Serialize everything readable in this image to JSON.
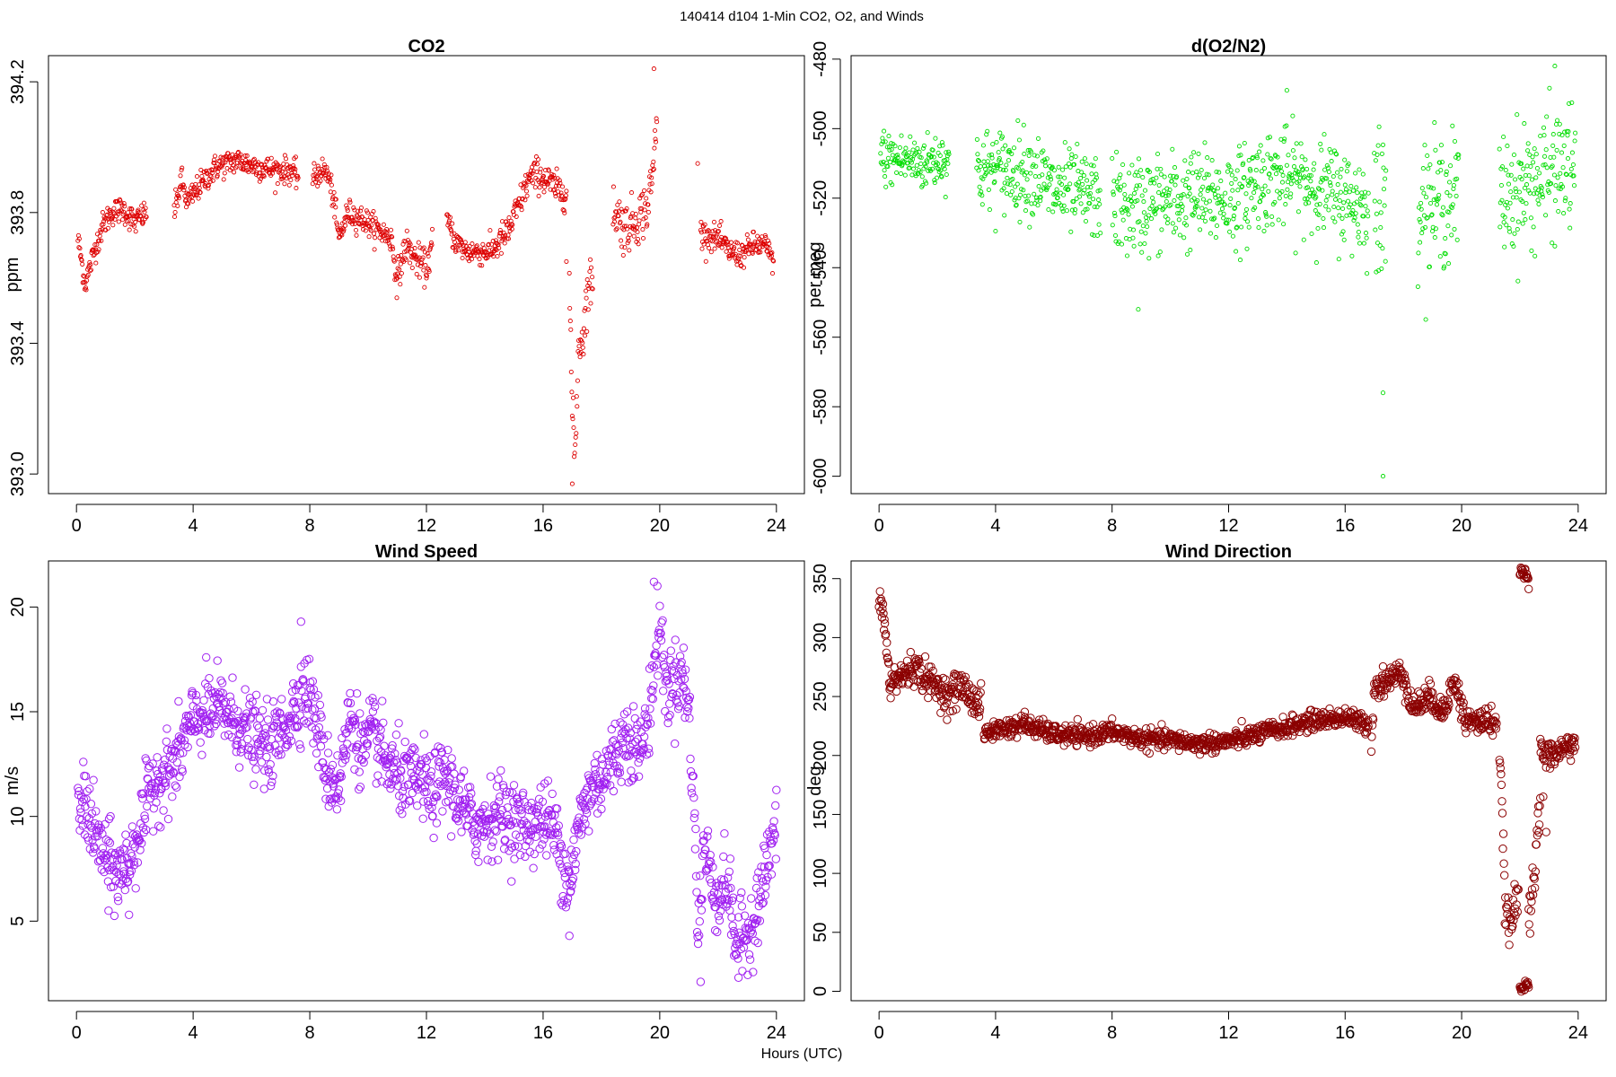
{
  "figure": {
    "title": "140414   d104   1-Min CO2, O2, and Winds",
    "xlabel": "Hours (UTC)"
  },
  "chart_data": [
    {
      "type": "scatter",
      "title": "CO2",
      "ylabel": "ppm",
      "xlabel": "",
      "color": "#dd0000",
      "point_radius": "small",
      "xlim": [
        -0.96,
        24.96
      ],
      "ylim": [
        392.94,
        394.28
      ],
      "xticks": [
        0,
        4,
        8,
        12,
        16,
        20,
        24
      ],
      "yticks": [
        393.0,
        393.4,
        393.8,
        394.2
      ],
      "ytick_labels": [
        "393.0",
        "393.4",
        "393.8",
        "394.2"
      ],
      "grid": false,
      "sampling_minutes": 1,
      "segments": [
        {
          "x": [
            0.05,
            0.3,
            0.6,
            0.9,
            1.2,
            1.6,
            2.0,
            2.4
          ],
          "y": [
            393.72,
            393.58,
            393.68,
            393.76,
            393.8,
            393.81,
            393.77,
            393.8
          ],
          "noise": 0.02
        },
        {
          "x": [
            3.35,
            3.6,
            3.8,
            4.2,
            4.8,
            5.5,
            6.2,
            6.8,
            7.3,
            7.6
          ],
          "y": [
            393.8,
            393.9,
            393.83,
            393.88,
            393.94,
            393.96,
            393.94,
            393.93,
            393.93,
            393.91
          ],
          "noise": 0.02
        },
        {
          "x": [
            8.1,
            8.4,
            8.6,
            8.8,
            9.0,
            9.3,
            9.8,
            10.3,
            10.8,
            11.0
          ],
          "y": [
            393.9,
            393.93,
            393.92,
            393.85,
            393.72,
            393.8,
            393.78,
            393.75,
            393.72,
            393.58
          ],
          "noise": 0.02
        },
        {
          "x": [
            11.0,
            11.3,
            11.6,
            12.0,
            12.2
          ],
          "y": [
            393.6,
            393.7,
            393.66,
            393.63,
            393.7
          ],
          "noise": 0.025
        },
        {
          "x": [
            12.7,
            13.0,
            13.4,
            13.8,
            14.2,
            14.4
          ],
          "y": [
            393.78,
            393.71,
            393.68,
            393.68,
            393.68,
            393.7
          ],
          "noise": 0.02
        },
        {
          "x": [
            14.4,
            14.8,
            15.2,
            15.5,
            15.8,
            16.1,
            16.5,
            16.8
          ],
          "y": [
            393.7,
            393.74,
            393.83,
            393.9,
            393.92,
            393.9,
            393.87,
            393.86
          ],
          "noise": 0.025
        },
        {
          "x": [
            16.9,
            17.0,
            17.1,
            17.2,
            17.4,
            17.5,
            17.7
          ],
          "y": [
            393.6,
            393.18,
            393.05,
            393.38,
            393.44,
            393.55,
            393.6
          ],
          "noise": 0.04
        },
        {
          "x": [
            18.4,
            18.8,
            19.1,
            19.4,
            19.6,
            19.8,
            19.9
          ],
          "y": [
            393.82,
            393.75,
            393.77,
            393.8,
            393.82,
            393.95,
            394.12
          ],
          "noise": 0.04
        },
        {
          "x": [
            21.4,
            21.6,
            22.0,
            22.4,
            22.8,
            23.2,
            23.6,
            23.9
          ],
          "y": [
            393.74,
            393.73,
            393.72,
            393.68,
            393.67,
            393.7,
            393.7,
            393.65
          ],
          "noise": 0.02
        }
      ],
      "outliers": [
        {
          "x": 17.0,
          "y": 392.97
        },
        {
          "x": 19.8,
          "y": 394.24
        },
        {
          "x": 21.3,
          "y": 393.95
        },
        {
          "x": 16.8,
          "y": 393.65
        }
      ]
    },
    {
      "type": "scatter",
      "title": "d(O2/N2)",
      "ylabel": "per meg",
      "xlabel": "",
      "color": "#00dd00",
      "point_radius": "small",
      "xlim": [
        -0.96,
        24.96
      ],
      "ylim": [
        -605.0,
        -479.0
      ],
      "xticks": [
        0,
        4,
        8,
        12,
        16,
        20,
        24
      ],
      "yticks": [
        -600,
        -580,
        -560,
        -540,
        -520,
        -500,
        -480
      ],
      "ytick_labels": [
        "-600",
        "-580",
        "-560",
        "-540",
        "-520",
        "-500",
        "-480"
      ],
      "grid": false,
      "sampling_minutes": 1,
      "segments": [
        {
          "x": [
            0.05,
            0.5,
            1.0,
            1.5,
            2.0,
            2.4
          ],
          "y": [
            -508,
            -509,
            -509,
            -510,
            -509,
            -508
          ],
          "noise": 4
        },
        {
          "x": [
            3.35,
            4.0,
            4.5,
            5.0,
            5.5,
            6.0,
            6.5,
            7.0,
            7.6
          ],
          "y": [
            -512,
            -512,
            -512,
            -512,
            -514,
            -518,
            -518,
            -519,
            -520
          ],
          "noise": 6
        },
        {
          "x": [
            8.0,
            8.5,
            9.0,
            10.0,
            11.0,
            12.0,
            12.7
          ],
          "y": [
            -522,
            -523,
            -522,
            -521,
            -520,
            -520,
            -519
          ],
          "noise": 7
        },
        {
          "x": [
            12.7,
            13.5,
            14.5,
            15.5,
            16.2,
            16.8
          ],
          "y": [
            -516,
            -514,
            -515,
            -518,
            -521,
            -522
          ],
          "noise": 7
        },
        {
          "x": [
            17.0,
            17.2,
            17.4
          ],
          "y": [
            -522,
            -525,
            -520
          ],
          "noise": 12
        },
        {
          "x": [
            18.5,
            19.0,
            19.5,
            19.9
          ],
          "y": [
            -520,
            -522,
            -520,
            -518
          ],
          "noise": 9
        },
        {
          "x": [
            21.3,
            21.8,
            22.3,
            22.8,
            23.3,
            23.9
          ],
          "y": [
            -520,
            -518,
            -516,
            -514,
            -512,
            -510
          ],
          "noise": 9
        }
      ],
      "outliers": [
        {
          "x": 17.3,
          "y": -600
        },
        {
          "x": 17.3,
          "y": -576
        },
        {
          "x": 23.2,
          "y": -482
        },
        {
          "x": 14.0,
          "y": -489
        },
        {
          "x": 8.9,
          "y": -552
        }
      ]
    },
    {
      "type": "scatter",
      "title": "Wind Speed",
      "ylabel": "m/s",
      "xlabel": "",
      "color": "#a020f0",
      "point_radius": "large",
      "xlim": [
        -0.96,
        24.96
      ],
      "ylim": [
        1.2,
        22.2
      ],
      "xticks": [
        0,
        4,
        8,
        12,
        16,
        20,
        24
      ],
      "yticks": [
        5,
        10,
        15,
        20
      ],
      "ytick_labels": [
        "5",
        "10",
        "15",
        "20"
      ],
      "grid": false,
      "sampling_minutes": 1,
      "segments": [
        {
          "x": [
            0.05,
            0.3,
            0.6,
            1.0,
            1.4,
            1.8,
            2.2,
            2.6,
            3.0,
            3.4,
            3.8,
            4.2,
            4.6,
            5.0,
            5.4,
            5.8,
            6.2,
            6.6,
            7.0,
            7.4,
            7.7,
            8.0,
            8.3,
            8.6,
            9.0,
            9.4,
            9.8,
            10.2,
            10.6,
            11.0,
            11.4,
            11.8,
            12.2,
            12.6,
            13.0,
            13.4,
            13.8,
            14.2,
            14.6,
            15.0,
            15.4,
            15.8,
            16.2,
            16.5,
            16.8,
            17.0,
            17.3,
            17.7,
            18.1,
            18.5,
            18.9,
            19.3,
            19.6,
            19.8,
            20.0,
            20.2,
            20.5,
            20.8,
            21.0,
            21.2,
            21.3,
            21.5,
            21.7,
            22.0,
            22.3,
            22.6,
            22.9,
            23.2,
            23.5,
            23.8,
            24.0
          ],
          "y": [
            10.0,
            10.8,
            9.2,
            8.0,
            7.2,
            7.8,
            9.5,
            11.5,
            12.0,
            12.5,
            14.0,
            14.8,
            15.0,
            15.2,
            14.5,
            14.2,
            13.5,
            13.2,
            14.0,
            15.0,
            16.0,
            15.8,
            14.0,
            12.0,
            11.5,
            15.0,
            13.0,
            14.0,
            12.5,
            12.0,
            11.5,
            11.8,
            11.0,
            12.0,
            11.0,
            10.0,
            9.5,
            10.0,
            10.2,
            9.8,
            9.5,
            9.8,
            9.8,
            9.0,
            7.0,
            7.5,
            10.0,
            11.5,
            12.0,
            13.0,
            14.0,
            13.0,
            14.5,
            17.0,
            19.5,
            16.0,
            16.5,
            16.8,
            15.0,
            10.0,
            4.0,
            8.5,
            7.5,
            6.0,
            7.0,
            4.0,
            4.2,
            5.0,
            6.5,
            8.5,
            9.3
          ],
          "noise": 0.9
        }
      ],
      "outliers": [
        {
          "x": 19.8,
          "y": 21.2
        },
        {
          "x": 7.7,
          "y": 19.3
        },
        {
          "x": 16.9,
          "y": 4.3
        },
        {
          "x": 21.4,
          "y": 2.1
        },
        {
          "x": 22.7,
          "y": 2.3
        },
        {
          "x": 1.8,
          "y": 5.3
        },
        {
          "x": 1.1,
          "y": 5.5
        }
      ]
    },
    {
      "type": "scatter",
      "title": "Wind Direction",
      "ylabel": "deg",
      "xlabel": "",
      "color": "#8b0000",
      "point_radius": "large",
      "xlim": [
        -0.96,
        24.96
      ],
      "ylim": [
        -8.0,
        365.0
      ],
      "xticks": [
        0,
        4,
        8,
        12,
        16,
        20,
        24
      ],
      "yticks": [
        0,
        50,
        100,
        150,
        200,
        250,
        300,
        350
      ],
      "ytick_labels": [
        "0",
        "50",
        "100",
        "150",
        "200",
        "250",
        "300",
        "350"
      ],
      "grid": false,
      "sampling_minutes": 1,
      "segments": [
        {
          "x": [
            0.0,
            0.1,
            0.2,
            0.3,
            0.4
          ],
          "y": [
            332,
            325,
            310,
            280,
            250
          ],
          "noise": 6
        },
        {
          "x": [
            0.4,
            0.8,
            1.2,
            1.6,
            2.0,
            2.4,
            2.8,
            3.2,
            3.5
          ],
          "y": [
            262,
            268,
            275,
            265,
            258,
            250,
            260,
            248,
            242
          ],
          "noise": 7
        },
        {
          "x": [
            3.6,
            4.0,
            5.0,
            6.0,
            7.0,
            8.0,
            9.0,
            10.0,
            11.0,
            12.0,
            13.0,
            14.0,
            15.0,
            16.0,
            16.8
          ],
          "y": [
            218,
            222,
            226,
            218,
            216,
            220,
            214,
            213,
            210,
            212,
            218,
            224,
            230,
            232,
            226
          ],
          "noise": 4
        },
        {
          "x": [
            16.9,
            17.0,
            17.3,
            17.6,
            18.0,
            18.3,
            18.6,
            19.0,
            19.3,
            19.6,
            19.8,
            20.1,
            20.5,
            20.9,
            21.2
          ],
          "y": [
            210,
            258,
            262,
            266,
            270,
            240,
            245,
            250,
            235,
            255,
            262,
            230,
            228,
            230,
            228
          ],
          "noise": 6
        },
        {
          "x": [
            21.3,
            21.4,
            21.5,
            21.6,
            21.7,
            21.8,
            21.95
          ],
          "y": [
            205,
            140,
            70,
            60,
            55,
            70,
            80
          ],
          "noise": 8
        },
        {
          "x": [
            22.0,
            22.1,
            22.2,
            22.3
          ],
          "y": [
            355,
            357,
            356,
            350
          ],
          "noise": 3
        },
        {
          "x": [
            22.0,
            22.1,
            22.2,
            22.3
          ],
          "y": [
            2,
            3,
            4,
            6
          ],
          "noise": 2
        },
        {
          "x": [
            22.3,
            22.4,
            22.5,
            22.6,
            22.7
          ],
          "y": [
            60,
            75,
            90,
            140,
            160
          ],
          "noise": 10
        },
        {
          "x": [
            22.7,
            23.0,
            23.3,
            23.6,
            23.9
          ],
          "y": [
            205,
            200,
            202,
            208,
            212
          ],
          "noise": 6
        }
      ],
      "outliers": [
        {
          "x": 16.0,
          "y": 240
        },
        {
          "x": 5.0,
          "y": 237
        },
        {
          "x": 22.8,
          "y": 165
        },
        {
          "x": 22.9,
          "y": 135
        }
      ]
    }
  ]
}
